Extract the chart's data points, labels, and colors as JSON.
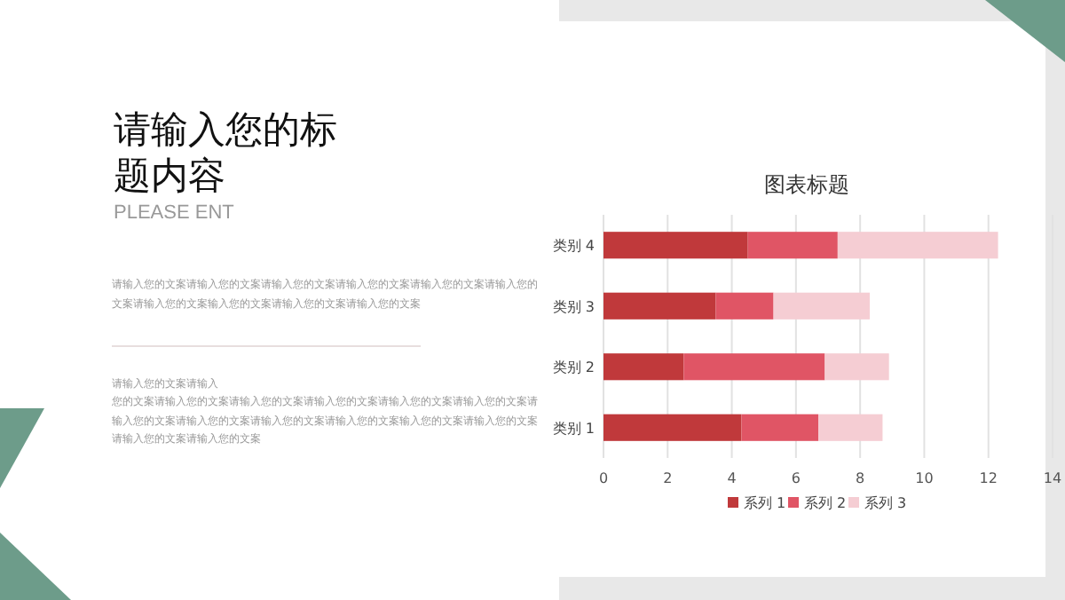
{
  "chart_data": [
    {
      "type": "other",
      "title": "请输入您的标题内容",
      "subtitle": "PLEASE ENT",
      "annotations": [
        "请输入您的文案请输入您的文案请输入您的文案请输入您的文案请输入您的文案请输入您的文案请输入您的文案输入您的文案请输入您的文案请输入您的文案",
        "请输入您的文案请输入",
        "您的文案请输入您的文案请输入您的文案请输入您的文案请输入您的文案请输入您的文案请输入您的文案请输入您的文案请输入您的文案请输入您的文案输入您的文案请输入您的文案请输入您的文案请输入您的文案"
      ]
    },
    {
      "type": "bar",
      "orientation": "horizontal",
      "stacked": true,
      "title": "图表标题",
      "categories": [
        "类别 4",
        "类别 3",
        "类别 2",
        "类别 1"
      ],
      "series": [
        {
          "name": "系列 1",
          "color": "#c0393b",
          "values": [
            4.5,
            3.5,
            2.5,
            4.3
          ]
        },
        {
          "name": "系列 2",
          "color": "#e05565",
          "values": [
            2.8,
            1.8,
            4.4,
            2.4
          ]
        },
        {
          "name": "系列 3",
          "color": "#f5cdd3",
          "values": [
            5,
            3,
            2,
            2
          ]
        }
      ],
      "xlim": [
        0,
        14
      ],
      "xticks": [
        0,
        2,
        4,
        6,
        8,
        10,
        12,
        14
      ],
      "grid": "x",
      "legend": "bottom"
    }
  ]
}
